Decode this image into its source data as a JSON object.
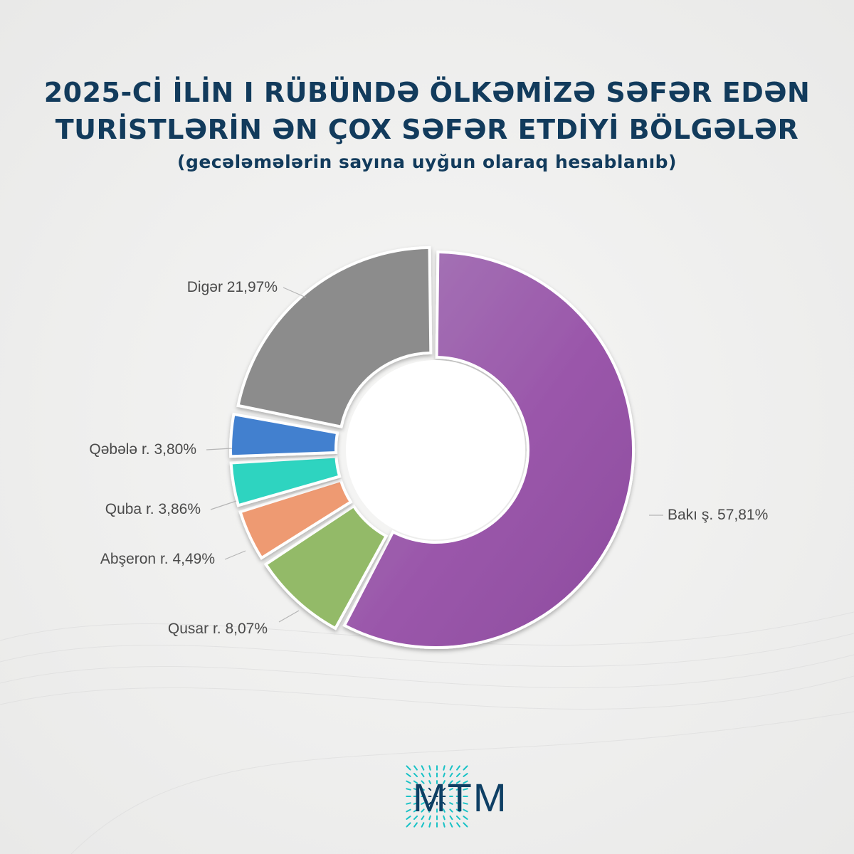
{
  "header": {
    "title_line1": "2025-Cİ İLİN I RÜBÜNDƏ ÖLKƏMİZƏ SƏFƏR EDƏN",
    "title_line2": "TURİSTLƏRİN ƏN ÇOX SƏFƏR ETDİYİ BÖLGƏLƏR",
    "subtitle": "(gecələmələrin sayına uyğun olaraq hesablanıb)"
  },
  "chart_data": {
    "type": "pie",
    "variant": "donut",
    "title": "2025-Cİ İLİN I RÜBÜNDƏ ÖLKƏMİZƏ SƏFƏR EDƏN TURİSTLƏRİN ƏN ÇOX SƏFƏR ETDİYİ BÖLGƏLƏR",
    "subtitle": "(gecələmələrin sayına uyğun olaraq hesablanıb)",
    "slices": [
      {
        "label": "Bakı ş. 57,81%",
        "name": "Bakı ş.",
        "value": 57.81,
        "color": "#9b55ab"
      },
      {
        "label": "Qusar r. 8,07%",
        "name": "Qusar r.",
        "value": 8.07,
        "color": "#93ba67"
      },
      {
        "label": "Abşeron r. 4,49%",
        "name": "Abşeron r.",
        "value": 4.49,
        "color": "#ee9a72"
      },
      {
        "label": "Quba r. 3,86%",
        "name": "Quba r.",
        "value": 3.86,
        "color": "#2fd4c0"
      },
      {
        "label": "Qəbələ r. 3,80%",
        "name": "Qəbələ r.",
        "value": 3.8,
        "color": "#4380cf"
      },
      {
        "label": "Digər 21,97%",
        "name": "Digər",
        "value": 21.97,
        "color": "#8c8c8c"
      }
    ],
    "legend": "none",
    "labels": "outside-with-leader-lines"
  },
  "brand": {
    "name": "MTM",
    "accent_colors": [
      "#19c2c6",
      "#0e3f64"
    ]
  }
}
